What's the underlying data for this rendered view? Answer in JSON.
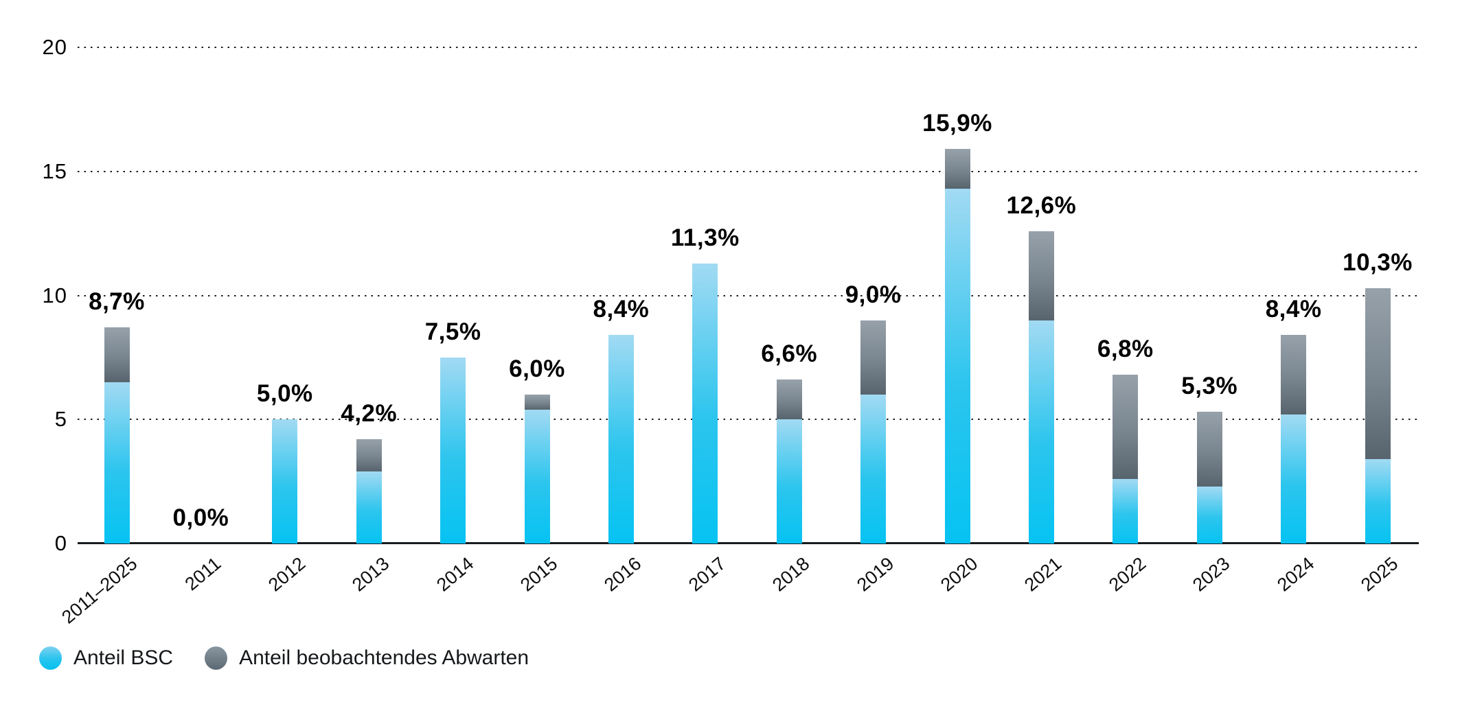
{
  "chart_data": {
    "type": "bar",
    "stacked": true,
    "title": "",
    "categories": [
      "2011–2025",
      "2011",
      "2012",
      "2013",
      "2014",
      "2015",
      "2016",
      "2017",
      "2018",
      "2019",
      "2020",
      "2021",
      "2022",
      "2023",
      "2024",
      "2025"
    ],
    "series": [
      {
        "name": "Anteil BSC",
        "gradient": {
          "top": "#a2daf3",
          "mid": "#2cc5ee",
          "bottom": "#06c3f2"
        },
        "values": [
          6.5,
          0,
          5.0,
          2.9,
          7.5,
          5.4,
          8.4,
          11.3,
          5.0,
          6.0,
          14.3,
          9.0,
          2.6,
          2.3,
          5.2,
          3.4
        ]
      },
      {
        "name": "Anteil beobachtendes Abwarten",
        "gradient": {
          "top": "#97a1aa",
          "mid": "#78858f",
          "bottom": "#57646e"
        },
        "values": [
          2.2,
          0,
          0,
          1.3,
          0,
          0.6,
          0,
          0,
          1.6,
          3.0,
          1.6,
          3.6,
          4.2,
          3.0,
          3.2,
          6.9
        ]
      }
    ],
    "totals_values": [
      8.7,
      0.0,
      5.0,
      4.2,
      7.5,
      6.0,
      8.4,
      11.3,
      6.6,
      9.0,
      15.9,
      12.6,
      6.8,
      5.3,
      8.4,
      10.3
    ],
    "totals_labels": [
      "8,7%",
      "0,0%",
      "5,0%",
      "4,2%",
      "7,5%",
      "6,0%",
      "8,4%",
      "11,3%",
      "6,6%",
      "9,0%",
      "15,9%",
      "12,6%",
      "6,8%",
      "5,3%",
      "8,4%",
      "10,3%"
    ],
    "ylim": [
      0,
      20
    ],
    "yticks": [
      0,
      5,
      10,
      15,
      20
    ],
    "grid": "dotted-horizontal",
    "legend_position": "bottom-left",
    "decimal_separator": ","
  }
}
